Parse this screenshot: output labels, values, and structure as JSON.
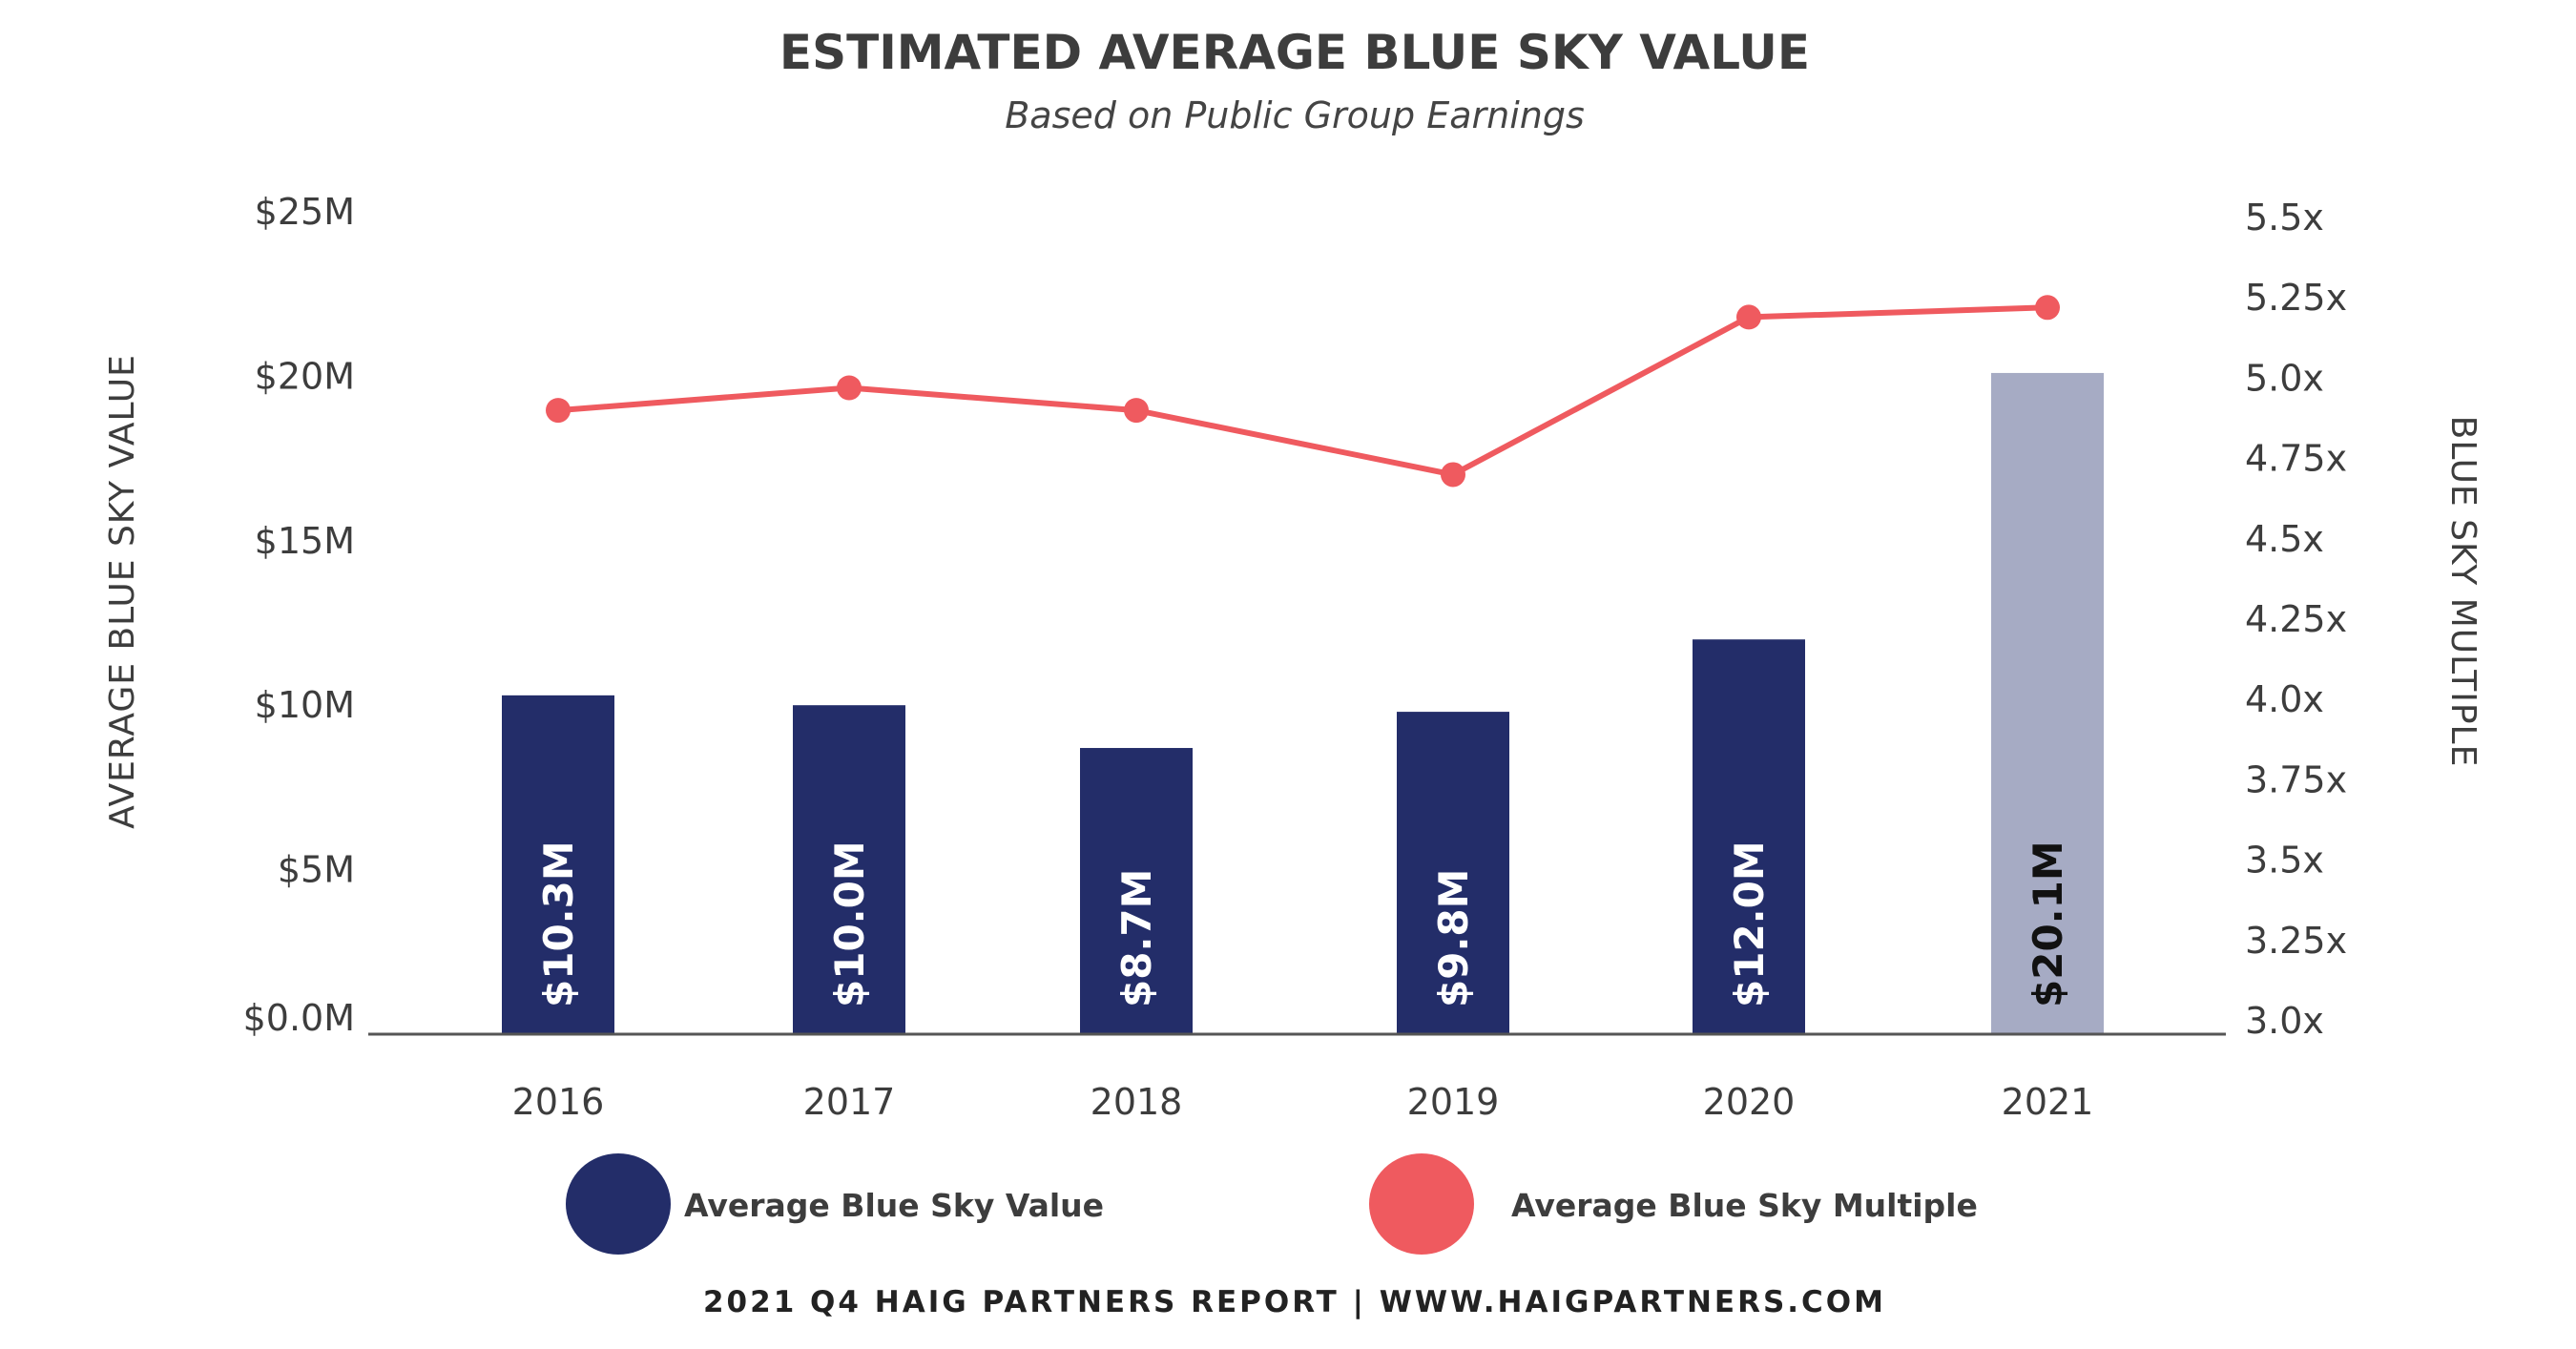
{
  "chart_data": {
    "type": "bar+line",
    "title": "ESTIMATED AVERAGE BLUE SKY VALUE",
    "subtitle": "Based on Public Group Earnings",
    "categories": [
      "2016",
      "2017",
      "2018",
      "2019",
      "2020",
      "2021"
    ],
    "series": [
      {
        "name": "Average Blue Sky Value",
        "type": "bar",
        "axis": "left",
        "values": [
          10.3,
          10.0,
          8.7,
          9.8,
          12.0,
          20.1
        ],
        "labels": [
          "$10.3M",
          "$10.0M",
          "$8.7M",
          "$9.8M",
          "$12.0M",
          "$20.1M"
        ],
        "colors": [
          "#232d69",
          "#232d69",
          "#232d69",
          "#232d69",
          "#232d69",
          "#a6abc4"
        ]
      },
      {
        "name": "Average Blue Sky Multiple",
        "type": "line",
        "axis": "right",
        "values": [
          4.9,
          4.97,
          4.9,
          4.7,
          5.19,
          5.22
        ],
        "color": "#ef5a5f"
      }
    ],
    "ylabel_left": "AVERAGE BLUE SKY VALUE",
    "ylabel_right": "BLUE SKY MULTIPLE",
    "ylim_left": [
      0,
      25
    ],
    "ylim_right": [
      3.0,
      5.5
    ],
    "yticks_left": [
      "$0.0M",
      "$5M",
      "$10M",
      "$15M",
      "$20M",
      "$25M"
    ],
    "yticks_right": [
      "3.0x",
      "3.25x",
      "3.5x",
      "3.75x",
      "4.0x",
      "4.25x",
      "4.5x",
      "4.75x",
      "5.0x",
      "5.25x",
      "5.5x"
    ],
    "grid": false,
    "legend_placement": "bottom"
  },
  "footer": "2021 Q4 HAIG PARTNERS REPORT | WWW.HAIGPARTNERS.COM"
}
